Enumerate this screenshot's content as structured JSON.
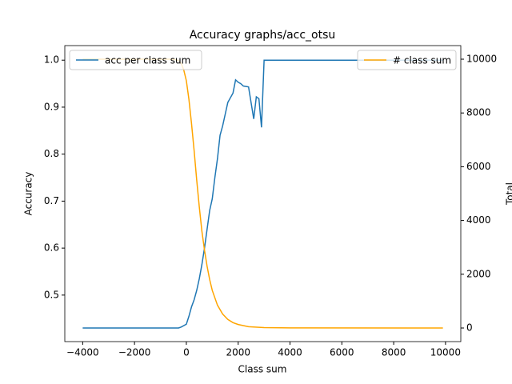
{
  "chart_data": {
    "type": "line",
    "title": "Accuracy graphs/acc_otsu",
    "x_label": "Class sum",
    "y_label": "Accuracy",
    "y2_label": "Total",
    "xlim": [
      -4690,
      10590
    ],
    "ylim": [
      0.401,
      1.031
    ],
    "y2lim": [
      -506,
      10506
    ],
    "xticks": [
      {
        "value": -4000,
        "label": "−4000"
      },
      {
        "value": -2000,
        "label": "−2000"
      },
      0,
      2000,
      4000,
      6000,
      8000,
      10000
    ],
    "yticks": [
      0.5,
      0.6,
      0.7,
      0.8,
      0.9,
      {
        "value": 1,
        "label": "1.0"
      }
    ],
    "y2ticks": [
      0,
      2000,
      4000,
      6000,
      8000,
      10000
    ],
    "series": [
      {
        "name": "acc per class sum",
        "color": "#1f77b4",
        "axis": "y",
        "legend": "upper left",
        "x": [
          -4000,
          -300,
          -200,
          0,
          100,
          200,
          300,
          400,
          500,
          600,
          700,
          800,
          900,
          1000,
          1100,
          1200,
          1300,
          1400,
          1500,
          1600,
          1700,
          1800,
          1900,
          2000,
          2100,
          2200,
          2400,
          2600,
          2700,
          2800,
          2900,
          3000,
          9900
        ],
        "values": [
          0.43,
          0.43,
          0.432,
          0.438,
          0.455,
          0.475,
          0.49,
          0.51,
          0.535,
          0.565,
          0.6,
          0.64,
          0.68,
          0.705,
          0.75,
          0.79,
          0.84,
          0.86,
          0.885,
          0.91,
          0.92,
          0.93,
          0.958,
          0.953,
          0.95,
          0.945,
          0.943,
          0.875,
          0.922,
          0.918,
          0.857,
          1,
          1
        ]
      },
      {
        "name": "# class sum",
        "color": "#ffa500",
        "axis": "y2",
        "legend": "upper right",
        "x": [
          -4000,
          -500,
          -300,
          -200,
          -100,
          0,
          100,
          200,
          300,
          400,
          500,
          600,
          700,
          800,
          900,
          1000,
          1200,
          1400,
          1600,
          1800,
          2000,
          2400,
          3000,
          4000,
          9900
        ],
        "values": [
          10000,
          10000,
          9950,
          9850,
          9600,
          9200,
          8500,
          7600,
          6600,
          5500,
          4500,
          3600,
          2900,
          2300,
          1800,
          1400,
          850,
          520,
          320,
          200,
          130,
          50,
          15,
          5,
          0
        ]
      }
    ]
  }
}
